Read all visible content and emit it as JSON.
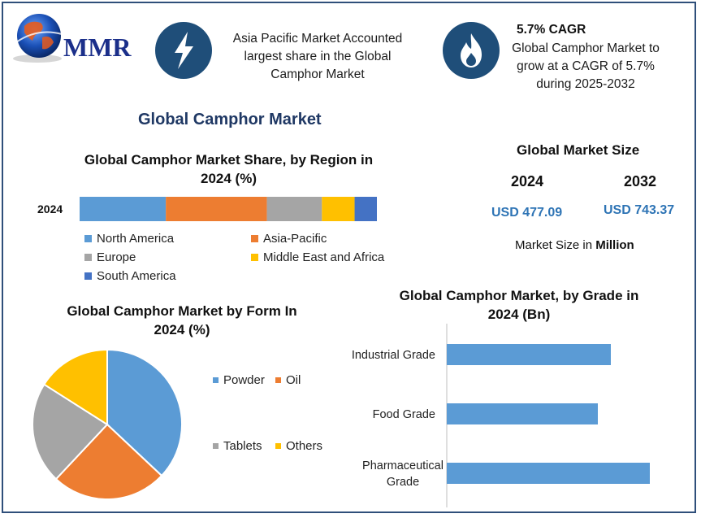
{
  "header": {
    "logo_text": "MMR",
    "note1": [
      "Asia Pacific Market Accounted",
      "largest share in the Global",
      "Camphor Market"
    ],
    "note2_title": "5.7% CAGR",
    "note2": [
      "Global Camphor Market to",
      "grow at a CAGR of 5.7%",
      "during 2025-2032"
    ],
    "icons": [
      "lightning-bolt-icon",
      "flame-icon"
    ]
  },
  "main_title": "Global Camphor Market",
  "market_size": {
    "title": "Global Market Size",
    "year1": "2024",
    "year2": "2032",
    "value1": "USD 477.09",
    "value2": "USD 743.37",
    "note_prefix": "Market Size in ",
    "note_bold": "Million"
  },
  "colors": {
    "blue": "#5b9bd5",
    "orange": "#ed7d31",
    "gray": "#a5a5a5",
    "yellow": "#ffc000",
    "darkblue": "#4472c4",
    "frame": "#2f4f7a",
    "circle": "#1f4e79"
  },
  "chart_data": [
    {
      "type": "bar",
      "orientation": "horizontal-stacked",
      "title": "Global Camphor Market Share, by Region in 2024 (%)",
      "categories": [
        "2024"
      ],
      "series": [
        {
          "name": "North America",
          "values": [
            29
          ]
        },
        {
          "name": "Asia-Pacific",
          "values": [
            34
          ]
        },
        {
          "name": "Europe",
          "values": [
            18.5
          ]
        },
        {
          "name": "Middle East and Africa",
          "values": [
            11
          ]
        },
        {
          "name": "South America",
          "values": [
            7.5
          ]
        }
      ],
      "legend": "bottom"
    },
    {
      "type": "pie",
      "title": "Global Camphor Market by Form In 2024 (%)",
      "labels": [
        "Powder",
        "Oil",
        "Tablets",
        "Others"
      ],
      "values": [
        37,
        25,
        22,
        16
      ],
      "legend": "right"
    },
    {
      "type": "bar",
      "orientation": "horizontal",
      "title": "Global Camphor Market, by Grade in 2024 (Bn)",
      "categories": [
        "Industrial Grade",
        "Food Grade",
        "Pharmaceutical Grade"
      ],
      "category_lines": [
        [
          "Industrial Grade"
        ],
        [
          "Food Grade"
        ],
        [
          "Pharmaceutical",
          "Grade"
        ]
      ],
      "values": [
        202,
        186,
        250
      ],
      "xlim": [
        0,
        300
      ]
    }
  ]
}
